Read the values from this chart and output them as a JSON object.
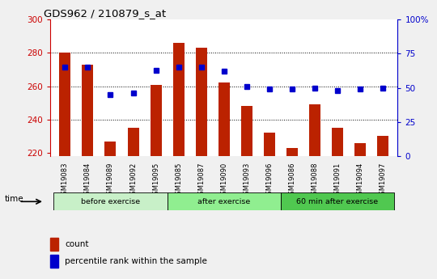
{
  "title": "GDS962 / 210879_s_at",
  "samples": [
    "GSM19083",
    "GSM19084",
    "GSM19089",
    "GSM19092",
    "GSM19095",
    "GSM19085",
    "GSM19087",
    "GSM19090",
    "GSM19093",
    "GSM19096",
    "GSM19086",
    "GSM19088",
    "GSM19091",
    "GSM19094",
    "GSM19097"
  ],
  "counts": [
    280,
    273,
    227,
    235,
    261,
    286,
    283,
    262,
    248,
    232,
    223,
    249,
    235,
    226,
    230
  ],
  "percentiles": [
    65,
    65,
    45,
    46,
    63,
    65,
    65,
    62,
    51,
    49,
    49,
    50,
    48,
    49,
    50
  ],
  "groups": [
    {
      "label": "before exercise",
      "start": 0,
      "end": 5,
      "color": "#c8f0c8"
    },
    {
      "label": "after exercise",
      "start": 5,
      "end": 10,
      "color": "#90ee90"
    },
    {
      "label": "60 min after exercise",
      "start": 10,
      "end": 15,
      "color": "#50c850"
    }
  ],
  "ylim_left": [
    218,
    300
  ],
  "ylim_right": [
    0,
    100
  ],
  "yticks_left": [
    220,
    240,
    260,
    280,
    300
  ],
  "yticks_right": [
    0,
    25,
    50,
    75,
    100
  ],
  "bar_color": "#bb2200",
  "dot_color": "#0000cc",
  "bar_width": 0.5,
  "grid_color": "#000000",
  "background_color": "#ffffff",
  "left_axis_color": "#cc0000",
  "right_axis_color": "#0000cc",
  "figsize": [
    5.4,
    3.45
  ],
  "dpi": 100
}
